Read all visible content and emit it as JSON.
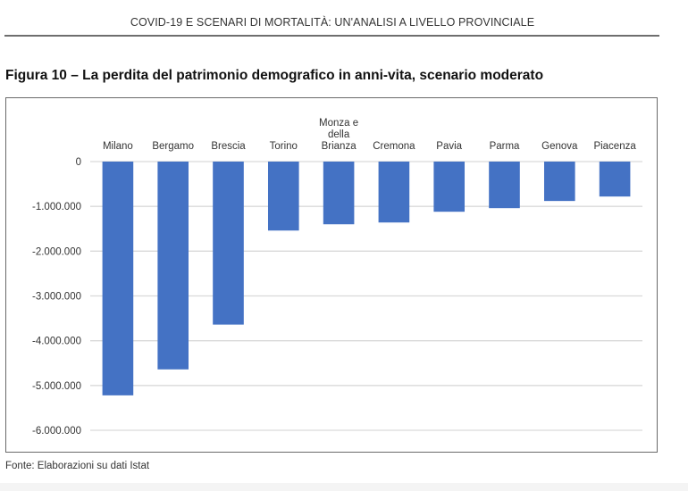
{
  "document": {
    "running_head": "COVID-19 E SCENARI DI MORTALITÀ: UN'ANALISI A LIVELLO PROVINCIALE",
    "figure_title": "Figura 10 – La perdita del patrimonio demografico in anni-vita, scenario moderato",
    "source_note": "Fonte: Elaborazioni su dati Istat"
  },
  "chart_data": {
    "type": "bar",
    "title": "La perdita del patrimonio demografico in anni-vita, scenario moderato",
    "xlabel": "",
    "ylabel": "",
    "categories": [
      "Milano",
      "Bergamo",
      "Brescia",
      "Torino",
      "Monza e della Brianza",
      "Cremona",
      "Pavia",
      "Parma",
      "Genova",
      "Piacenza"
    ],
    "category_label_lines": [
      [
        "Milano"
      ],
      [
        "Bergamo"
      ],
      [
        "Brescia"
      ],
      [
        "Torino"
      ],
      [
        "Monza e",
        "della",
        "Brianza"
      ],
      [
        "Cremona"
      ],
      [
        "Pavia"
      ],
      [
        "Parma"
      ],
      [
        "Genova"
      ],
      [
        "Piacenza"
      ]
    ],
    "values": [
      -5220000,
      -4640000,
      -3640000,
      -1540000,
      -1400000,
      -1360000,
      -1120000,
      -1040000,
      -880000,
      -780000
    ],
    "ylim": [
      -6000000,
      0
    ],
    "yticks": [
      0,
      -1000000,
      -2000000,
      -3000000,
      -4000000,
      -5000000,
      -6000000
    ],
    "ytick_labels": [
      "0",
      "-1.000.000",
      "-2.000.000",
      "-3.000.000",
      "-4.000.000",
      "-5.000.000",
      "-6.000.000"
    ],
    "category_axis_position": "top",
    "grid": true,
    "legend": "none",
    "bar_color": "#4472c4",
    "grid_color": "#d9d9d9"
  }
}
